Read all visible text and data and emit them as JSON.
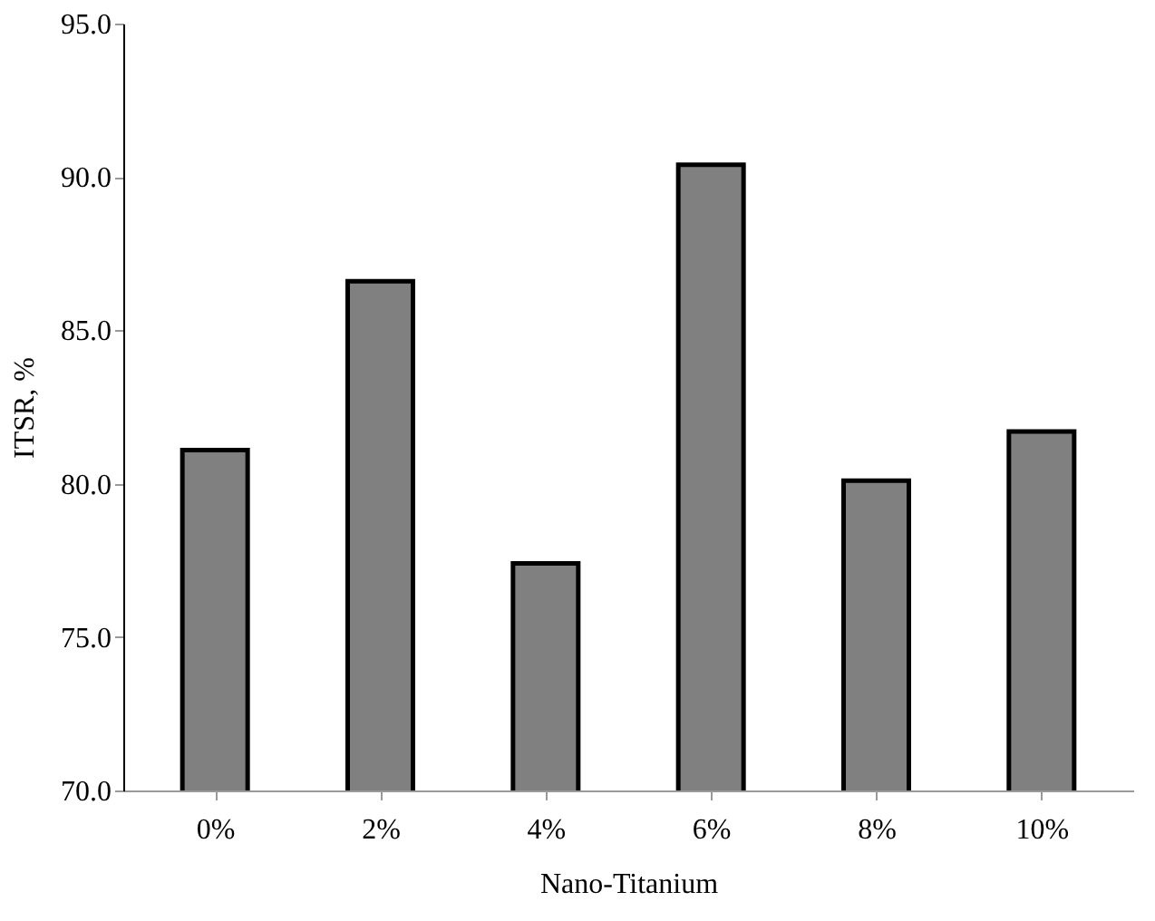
{
  "chart_data": {
    "type": "bar",
    "xlabel": "Nano-Titanium",
    "ylabel": "ITSR, %",
    "categories": [
      "0%",
      "2%",
      "4%",
      "6%",
      "8%",
      "10%"
    ],
    "values": [
      81.1,
      86.6,
      77.4,
      90.4,
      80.1,
      81.7
    ],
    "color": "#808080",
    "ylim": [
      70,
      95
    ],
    "yticks": [
      {
        "value": 70,
        "label": "70.0"
      },
      {
        "value": 75,
        "label": "75.0"
      },
      {
        "value": 80,
        "label": "80.0"
      },
      {
        "value": 85,
        "label": "85.0"
      },
      {
        "value": 90,
        "label": "90.0"
      },
      {
        "value": 95,
        "label": "95.0"
      }
    ],
    "grid": false
  }
}
